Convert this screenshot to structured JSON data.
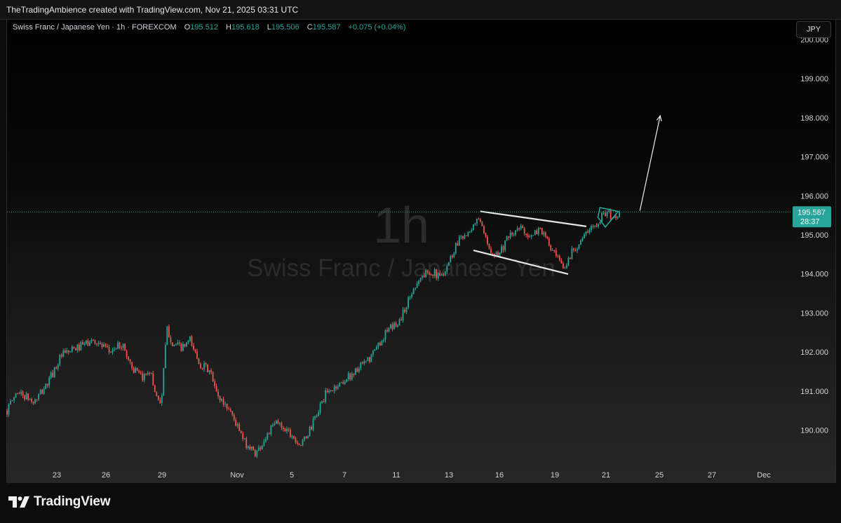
{
  "header": {
    "attribution": "TheTradingAmbience created with TradingView.com, Nov 21, 2025 03:31 UTC"
  },
  "legend": {
    "symbol": "Swiss Franc / Japanese Yen · 1h · FOREXCOM",
    "o_label": "O",
    "o_value": "195.512",
    "h_label": "H",
    "h_value": "195.618",
    "l_label": "L",
    "l_value": "195.506",
    "c_label": "C",
    "c_value": "195.587",
    "change": "+0.075 (+0.04%)"
  },
  "currency_button": "JPY",
  "watermark": {
    "interval": "1h",
    "name": "Swiss Franc / Japanese Yen"
  },
  "price_label": {
    "price": "195.587",
    "countdown": "28:37"
  },
  "brand": {
    "name": "TradingView"
  },
  "colors": {
    "up": "#26a69a",
    "down": "#ef5350",
    "last_price": "#26a69a",
    "drawing": "#e6e6e6"
  },
  "chart_data": {
    "type": "candlestick",
    "symbol": "CHFJPY",
    "interval": "1h",
    "y_ticks": [
      "190.000",
      "191.000",
      "192.000",
      "193.000",
      "194.000",
      "195.000",
      "196.000",
      "197.000",
      "198.000",
      "199.000",
      "200.000"
    ],
    "ylim": [
      189.2,
      200.2
    ],
    "x_ticks": [
      "23",
      "26",
      "29",
      "Nov",
      "5",
      "7",
      "11",
      "13",
      "16",
      "19",
      "21",
      "25",
      "27",
      "Dec"
    ],
    "last_price": 195.587,
    "path_anchors": [
      {
        "t": 0.0,
        "price": 190.5
      },
      {
        "t": 1.5,
        "price": 191.0
      },
      {
        "t": 4.0,
        "price": 190.7
      },
      {
        "t": 6.0,
        "price": 191.2
      },
      {
        "t": 8.0,
        "price": 191.9
      },
      {
        "t": 11.5,
        "price": 192.2
      },
      {
        "t": 13.0,
        "price": 192.3
      },
      {
        "t": 15.0,
        "price": 192.0
      },
      {
        "t": 17.0,
        "price": 192.2
      },
      {
        "t": 18.5,
        "price": 191.6
      },
      {
        "t": 20.0,
        "price": 191.3
      },
      {
        "t": 21.0,
        "price": 191.6
      },
      {
        "t": 22.0,
        "price": 190.9
      },
      {
        "t": 22.8,
        "price": 190.7
      },
      {
        "t": 23.6,
        "price": 192.6
      },
      {
        "t": 24.5,
        "price": 192.2
      },
      {
        "t": 26.0,
        "price": 192.1
      },
      {
        "t": 27.0,
        "price": 192.3
      },
      {
        "t": 28.5,
        "price": 191.7
      },
      {
        "t": 30.0,
        "price": 191.5
      },
      {
        "t": 31.0,
        "price": 190.9
      },
      {
        "t": 33.0,
        "price": 190.5
      },
      {
        "t": 35.0,
        "price": 189.7
      },
      {
        "t": 36.8,
        "price": 189.4
      },
      {
        "t": 38.5,
        "price": 189.9
      },
      {
        "t": 39.8,
        "price": 190.2
      },
      {
        "t": 41.5,
        "price": 190.0
      },
      {
        "t": 43.5,
        "price": 189.6
      },
      {
        "t": 45.0,
        "price": 190.1
      },
      {
        "t": 47.0,
        "price": 190.9
      },
      {
        "t": 50.0,
        "price": 191.3
      },
      {
        "t": 53.5,
        "price": 191.8
      },
      {
        "t": 56.0,
        "price": 192.5
      },
      {
        "t": 58.0,
        "price": 192.8
      },
      {
        "t": 60.5,
        "price": 193.8
      },
      {
        "t": 62.5,
        "price": 194.1
      },
      {
        "t": 64.0,
        "price": 193.9
      },
      {
        "t": 65.5,
        "price": 194.4
      },
      {
        "t": 67.0,
        "price": 195.0
      },
      {
        "t": 68.5,
        "price": 195.0
      },
      {
        "t": 69.5,
        "price": 195.5
      },
      {
        "t": 71.0,
        "price": 194.7
      },
      {
        "t": 72.5,
        "price": 194.5
      },
      {
        "t": 74.0,
        "price": 194.9
      },
      {
        "t": 76.0,
        "price": 195.2
      },
      {
        "t": 77.5,
        "price": 194.9
      },
      {
        "t": 78.7,
        "price": 195.2
      },
      {
        "t": 80.5,
        "price": 194.6
      },
      {
        "t": 82.3,
        "price": 194.1
      },
      {
        "t": 83.5,
        "price": 194.6
      },
      {
        "t": 85.5,
        "price": 195.0
      },
      {
        "t": 87.0,
        "price": 195.3
      },
      {
        "t": 88.5,
        "price": 195.6
      },
      {
        "t": 89.5,
        "price": 195.4
      },
      {
        "t": 90.5,
        "price": 195.58
      }
    ],
    "drawings": [
      {
        "kind": "trendline",
        "from": {
          "t": 70.0,
          "price": 195.6
        },
        "to": {
          "t": 85.5,
          "price": 195.22
        }
      },
      {
        "kind": "trendline",
        "from": {
          "t": 69.0,
          "price": 194.6
        },
        "to": {
          "t": 82.8,
          "price": 194.0
        }
      },
      {
        "kind": "flag",
        "points": [
          {
            "t": 87.6,
            "price": 195.7
          },
          {
            "t": 90.3,
            "price": 195.6
          },
          {
            "t": 88.4,
            "price": 195.2
          },
          {
            "t": 87.3,
            "price": 195.45
          }
        ]
      },
      {
        "kind": "arrow",
        "from": {
          "t": 93.5,
          "price": 195.62
        },
        "to": {
          "t": 96.5,
          "price": 198.05
        }
      }
    ]
  }
}
